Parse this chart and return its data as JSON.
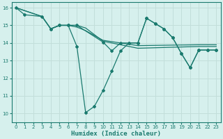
{
  "xlabel": "Humidex (Indice chaleur)",
  "bg_color": "#d6f0ed",
  "grid_color": "#c2deda",
  "line_color": "#1a7a6e",
  "xlim": [
    -0.5,
    23.5
  ],
  "ylim": [
    9.5,
    16.3
  ],
  "xticks": [
    0,
    1,
    2,
    3,
    4,
    5,
    6,
    7,
    8,
    9,
    10,
    11,
    12,
    13,
    14,
    15,
    16,
    17,
    18,
    19,
    20,
    21,
    22,
    23
  ],
  "yticks": [
    10,
    11,
    12,
    13,
    14,
    15,
    16
  ],
  "line1_x": [
    0,
    1,
    3,
    4,
    5,
    6,
    7,
    8,
    9,
    10,
    11,
    12,
    13,
    14,
    15,
    16,
    17,
    18,
    19,
    20,
    21,
    22,
    23
  ],
  "line1_y": [
    16.0,
    15.6,
    15.5,
    14.8,
    15.0,
    15.0,
    13.8,
    10.05,
    10.4,
    11.3,
    12.4,
    13.55,
    14.0,
    14.0,
    15.4,
    15.1,
    14.8,
    14.3,
    13.4,
    12.6,
    13.6,
    13.6,
    13.6
  ],
  "line2_x": [
    0,
    3,
    4,
    5,
    6,
    7,
    8,
    10,
    14,
    21,
    22,
    23
  ],
  "line2_y": [
    16.0,
    15.5,
    14.8,
    15.0,
    15.0,
    14.9,
    14.7,
    14.15,
    13.85,
    13.9,
    13.9,
    13.9
  ],
  "line3_x": [
    0,
    3,
    4,
    5,
    6,
    7,
    8,
    10,
    14,
    21,
    22,
    23
  ],
  "line3_y": [
    16.0,
    15.5,
    14.8,
    15.0,
    15.0,
    15.0,
    14.85,
    14.1,
    13.7,
    13.8,
    13.8,
    13.8
  ],
  "line4_x": [
    4,
    5,
    6,
    7,
    10,
    11,
    12,
    13,
    14,
    15,
    16,
    17,
    18,
    19,
    20,
    21,
    22,
    23
  ],
  "line4_y": [
    14.8,
    15.0,
    15.0,
    15.0,
    14.05,
    13.55,
    14.0,
    14.0,
    14.0,
    15.4,
    15.1,
    14.8,
    14.3,
    13.4,
    12.6,
    13.6,
    13.6,
    13.6
  ]
}
